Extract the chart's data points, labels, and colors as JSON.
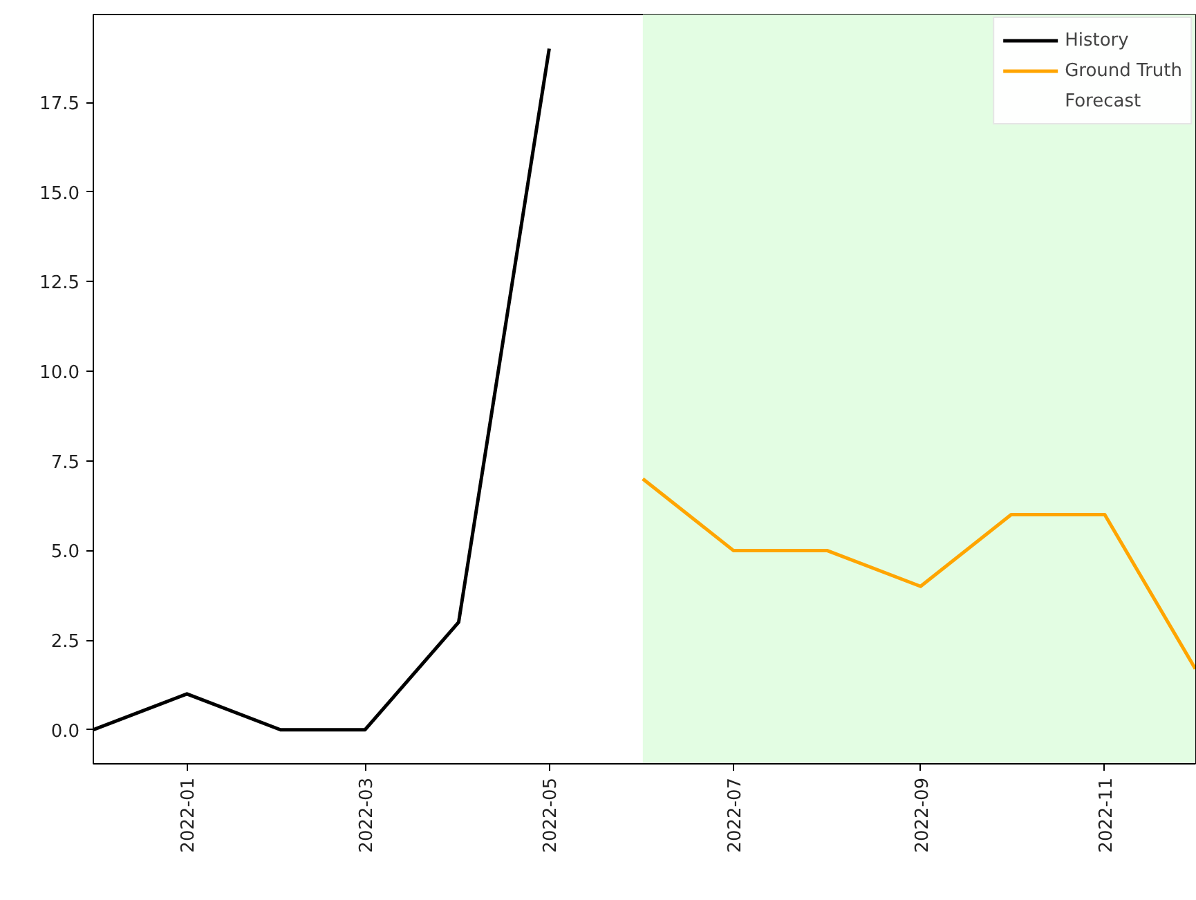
{
  "chart_data": {
    "type": "line",
    "xlim": [
      "2021-12",
      "2022-12"
    ],
    "ylim": [
      -0.95,
      19.95
    ],
    "xticks": [
      {
        "value": "2022-01",
        "label": "2022-01"
      },
      {
        "value": "2022-03",
        "label": "2022-03"
      },
      {
        "value": "2022-05",
        "label": "2022-05"
      },
      {
        "value": "2022-07",
        "label": "2022-07"
      },
      {
        "value": "2022-09",
        "label": "2022-09"
      },
      {
        "value": "2022-11",
        "label": "2022-11"
      }
    ],
    "yticks": [
      {
        "value": 0,
        "label": "0.0"
      },
      {
        "value": 2.5,
        "label": "2.5"
      },
      {
        "value": 5,
        "label": "5.0"
      },
      {
        "value": 7.5,
        "label": "7.5"
      },
      {
        "value": 10,
        "label": "10.0"
      },
      {
        "value": 12.5,
        "label": "12.5"
      },
      {
        "value": 15,
        "label": "15.0"
      },
      {
        "value": 17.5,
        "label": "17.5"
      }
    ],
    "series": [
      {
        "name": "History",
        "color": "#000000",
        "x": [
          "2021-12",
          "2022-01",
          "2022-02",
          "2022-03",
          "2022-04",
          "2022-05"
        ],
        "values": [
          0,
          1,
          0,
          0,
          3,
          19
        ]
      },
      {
        "name": "Ground Truth",
        "color": "#ffa500",
        "x": [
          "2022-06",
          "2022-07",
          "2022-08",
          "2022-09",
          "2022-10",
          "2022-11",
          "2022-12"
        ],
        "values": [
          7,
          5,
          5,
          4,
          6,
          6,
          1.7
        ]
      }
    ],
    "bands": [
      {
        "axis": "x",
        "from": "2022-06",
        "to": "2022-12",
        "label": "Forecast",
        "color": "#e3fde3"
      }
    ],
    "grid": false,
    "legend": "top right",
    "line_style": "solid"
  }
}
